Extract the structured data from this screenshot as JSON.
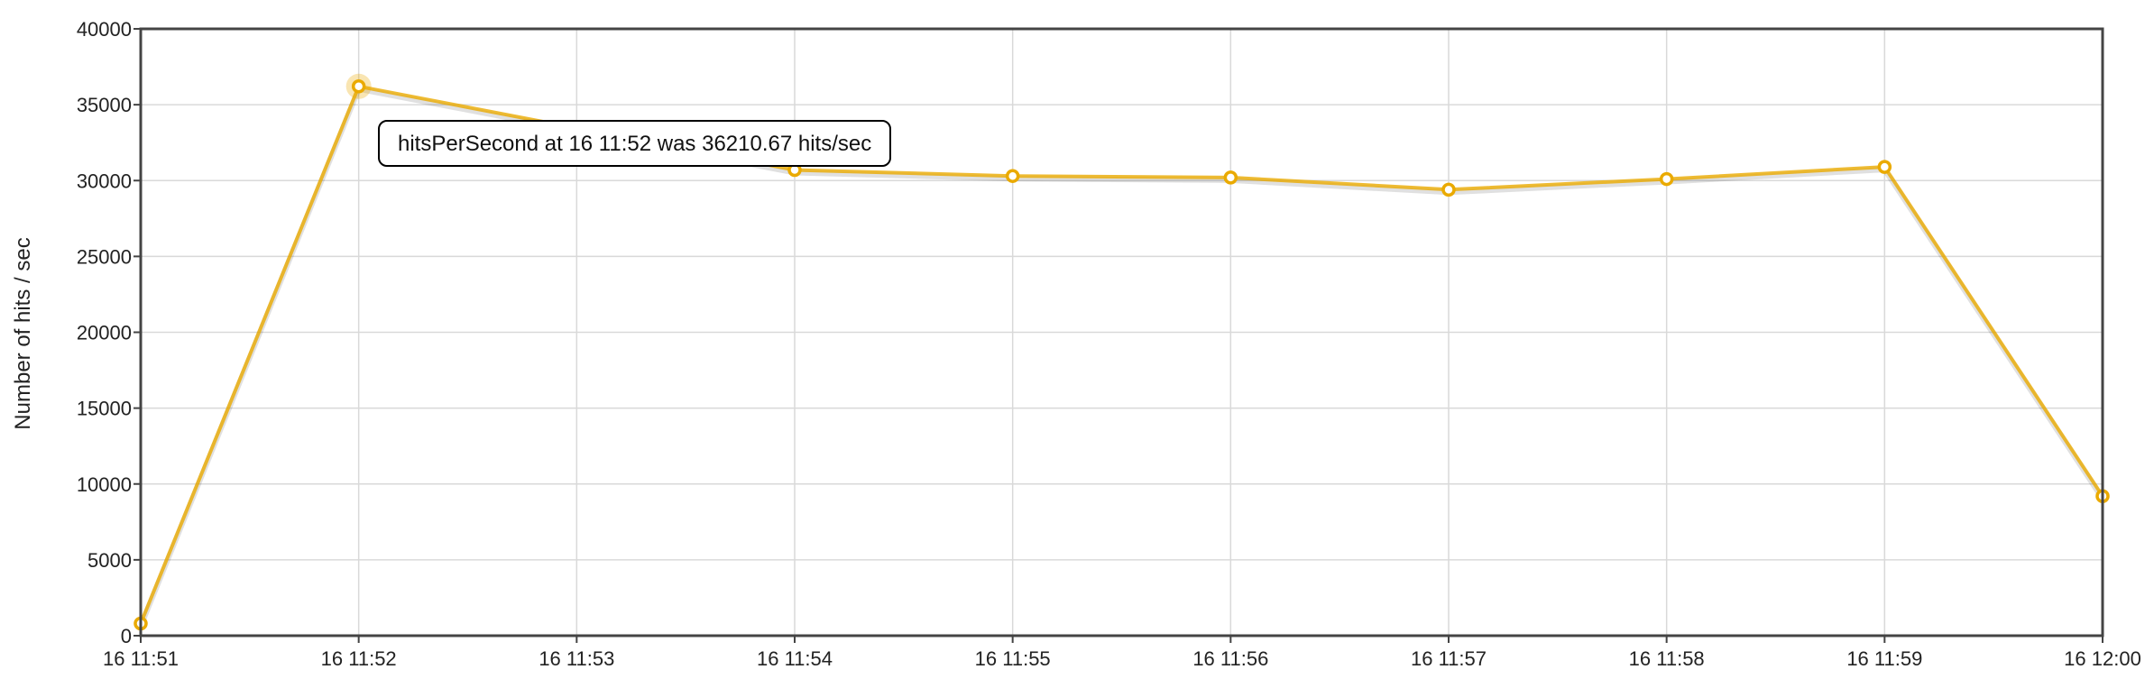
{
  "chart_data": {
    "type": "line",
    "ylabel": "Number of hits / sec",
    "ylim": [
      0,
      40000
    ],
    "yticks": [
      "0",
      "5000",
      "10000",
      "15000",
      "20000",
      "25000",
      "30000",
      "35000",
      "40000"
    ],
    "categories": [
      "16 11:51",
      "16 11:52",
      "16 11:53",
      "16 11:54",
      "16 11:55",
      "16 11:56",
      "16 11:57",
      "16 11:58",
      "16 11:59",
      "16 12:00"
    ],
    "series": [
      {
        "name": "hitsPerSecond",
        "color": "#EAAA00",
        "points": [
          {
            "x": "16 11:51",
            "y": 800
          },
          {
            "x": "16 11:52",
            "y": 36210.67
          },
          {
            "x": "16 11:54",
            "y": 30700
          },
          {
            "x": "16 11:55",
            "y": 30300
          },
          {
            "x": "16 11:56",
            "y": 30200
          },
          {
            "x": "16 11:57",
            "y": 29400
          },
          {
            "x": "16 11:58",
            "y": 30100
          },
          {
            "x": "16 11:59",
            "y": 30900
          },
          {
            "x": "16 12:00",
            "y": 9200
          }
        ]
      }
    ],
    "grid": true,
    "legend": "none",
    "tooltip": {
      "text": "hitsPerSecond at 16 11:52 was 36210.67 hits/sec",
      "highlight_x": "16 11:52"
    }
  }
}
